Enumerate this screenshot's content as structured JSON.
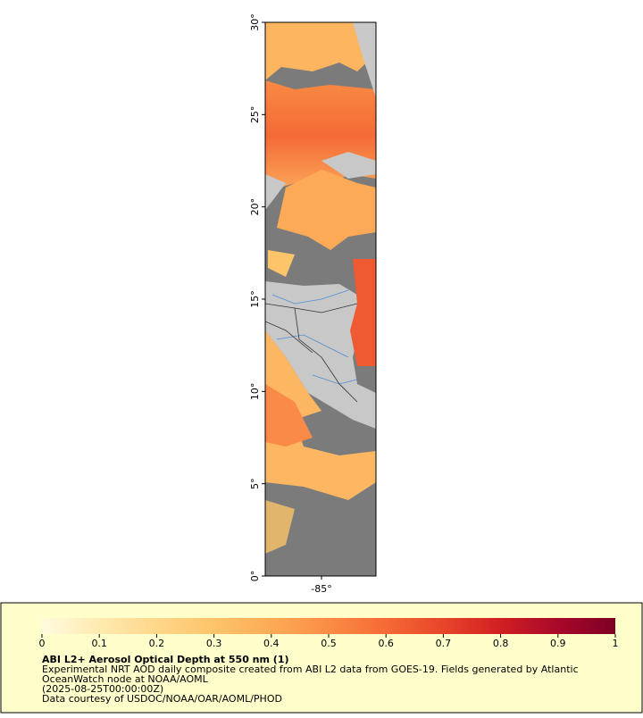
{
  "map": {
    "lat_lim": [
      0,
      30
    ],
    "lat_ticks": [
      {
        "value": 0,
        "label": "0°"
      },
      {
        "value": 5,
        "label": "5°"
      },
      {
        "value": 10,
        "label": "10°"
      },
      {
        "value": 15,
        "label": "15°"
      },
      {
        "value": 20,
        "label": "20°"
      },
      {
        "value": 25,
        "label": "25°"
      },
      {
        "value": 30,
        "label": "30°"
      }
    ],
    "lon_ticks": [
      {
        "value": -85,
        "label": "-85°"
      }
    ]
  },
  "colorbar": {
    "lim": [
      0,
      1
    ],
    "ticks": [
      0,
      0.1,
      0.2,
      0.3,
      0.4,
      0.5,
      0.6,
      0.7,
      0.8,
      0.9,
      1
    ],
    "colors": [
      "#fffbe0",
      "#ffeab0",
      "#fed78a",
      "#fdc46a",
      "#fcab55",
      "#fb8c45",
      "#f56a35",
      "#e8452a",
      "#d01f22",
      "#a8082a",
      "#7d0025"
    ]
  },
  "legend": {
    "title": "ABI L2+ Aerosol Optical Depth at 550 nm (1)",
    "lines": [
      "Experimental NRT AOD daily composite created from ABI L2 data from GOES-19. Fields generated by Atlantic",
      "OceanWatch node at NOAA/AOML",
      "(2025-08-25T00:00:00Z)",
      "Data courtesy of USDOC/NOAA/OAR/AOML/PHOD"
    ]
  }
}
